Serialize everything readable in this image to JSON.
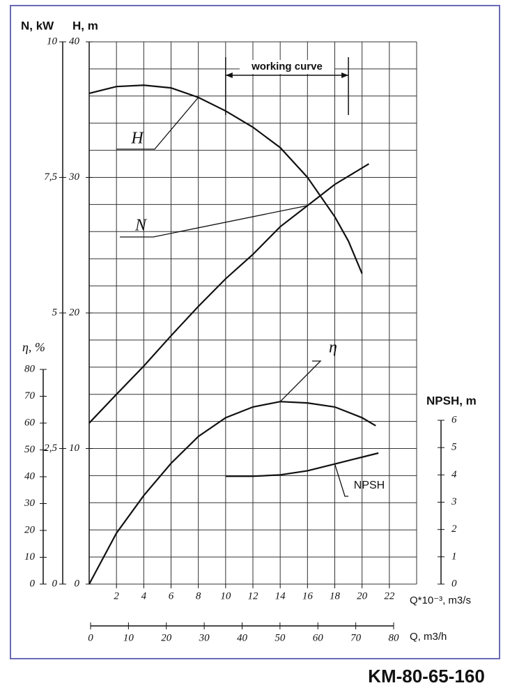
{
  "chart_data": {
    "type": "line",
    "title": "KM-80-65-160",
    "xlabel": "Q*10⁻³, m3/s",
    "x2label": "Q, m3/h",
    "ylabel": "H, m",
    "y2label": "N, kW",
    "y3label": "η, %",
    "y4label": "NPSH, m",
    "annotation": "working curve",
    "working_range": [
      10,
      19
    ],
    "xlim": [
      0,
      24
    ],
    "xticks": [
      2,
      4,
      6,
      8,
      10,
      12,
      14,
      16,
      18,
      20,
      22
    ],
    "x2lim": [
      0,
      80
    ],
    "x2ticks": [
      0,
      10,
      20,
      30,
      40,
      50,
      60,
      70,
      80
    ],
    "ylim": [
      0,
      40
    ],
    "yticks": [
      0,
      10,
      20,
      30,
      40
    ],
    "y2lim": [
      0,
      10
    ],
    "y2ticks": [
      0,
      {
        "value": 2.5,
        "label": "2,5"
      },
      5,
      {
        "value": 7.5,
        "label": "7,5"
      },
      10
    ],
    "y3lim": [
      0,
      80
    ],
    "y3ticks": [
      0,
      10,
      20,
      30,
      40,
      50,
      60,
      70,
      80
    ],
    "y4lim": [
      0,
      6
    ],
    "y4ticks": [
      0,
      1,
      2,
      3,
      4,
      5,
      6
    ],
    "grid": true,
    "xgrid": [
      0,
      2,
      4,
      6,
      8,
      10,
      12,
      14,
      16,
      18,
      20,
      22,
      24
    ],
    "ygrid": [
      0,
      2,
      4,
      6,
      8,
      10,
      12,
      14,
      16,
      18,
      20,
      22,
      24,
      26,
      28,
      30,
      32,
      34,
      36,
      38,
      40
    ],
    "series": [
      {
        "name": "H",
        "axis": "y",
        "color": "#111111",
        "x": [
          0,
          2,
          4,
          6,
          8,
          10,
          12,
          14,
          16,
          18,
          19,
          20
        ],
        "values": [
          36.2,
          36.7,
          36.8,
          36.6,
          35.9,
          34.9,
          33.7,
          32.2,
          30.0,
          27.1,
          25.3,
          22.9
        ]
      },
      {
        "name": "N",
        "axis": "y2",
        "color": "#111111",
        "x": [
          0,
          2,
          4,
          6,
          8,
          10,
          12,
          14,
          16,
          18,
          20.5
        ],
        "values": [
          2.97,
          3.5,
          4.02,
          4.58,
          5.12,
          5.63,
          6.08,
          6.59,
          6.98,
          7.37,
          7.75
        ]
      },
      {
        "name": "η",
        "axis": "y3",
        "color": "#111111",
        "x": [
          0,
          2,
          4,
          6,
          8,
          10,
          12,
          14,
          16,
          18,
          20,
          21
        ],
        "values": [
          0,
          19,
          33,
          45,
          55,
          62,
          66,
          68,
          67.5,
          66,
          62,
          59
        ]
      },
      {
        "name": "NPSH",
        "axis": "y4",
        "color": "#111111",
        "x": [
          10,
          12,
          14,
          16,
          18,
          20,
          21.2
        ],
        "values": [
          3.95,
          3.95,
          4.0,
          4.15,
          4.4,
          4.65,
          4.8
        ]
      }
    ]
  }
}
